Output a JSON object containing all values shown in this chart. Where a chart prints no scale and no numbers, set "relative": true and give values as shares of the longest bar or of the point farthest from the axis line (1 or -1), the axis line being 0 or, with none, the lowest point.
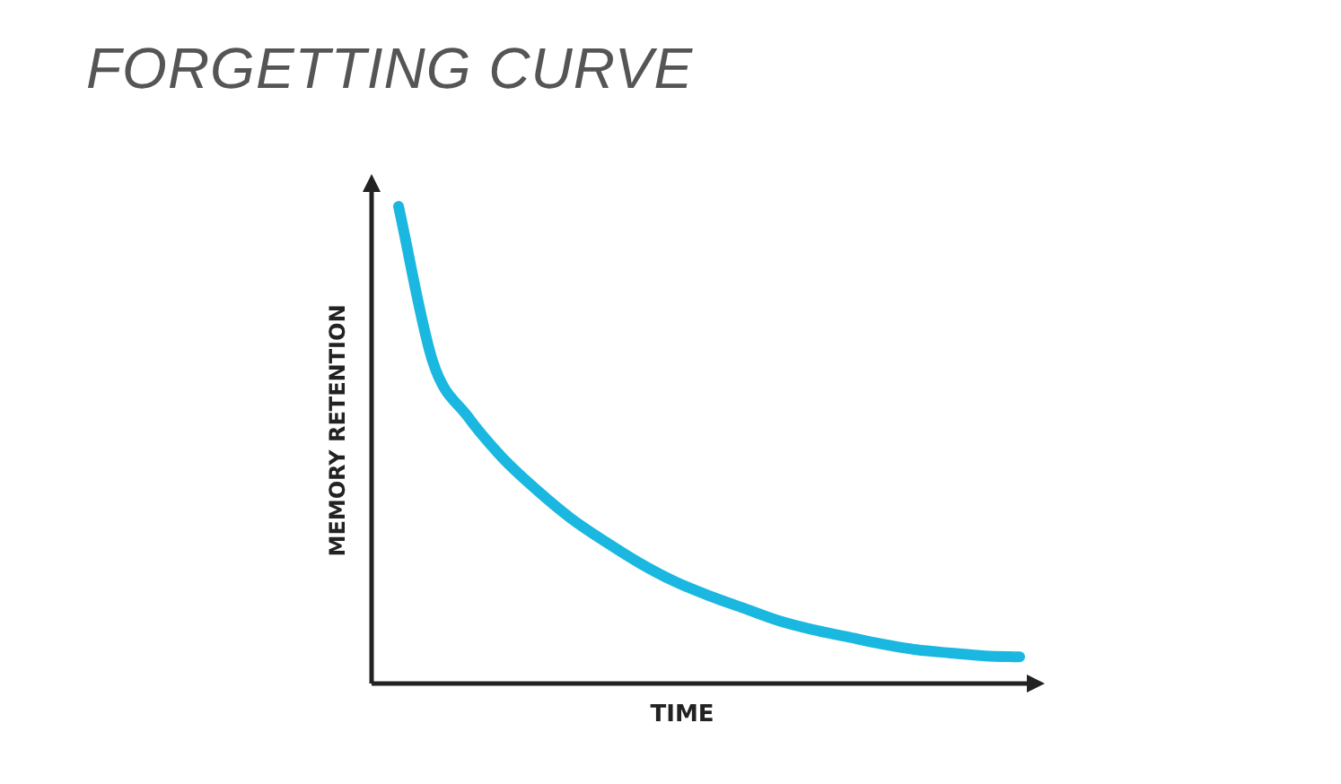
{
  "chart_data": {
    "type": "line",
    "title": "FORGETTING CURVE",
    "xlabel": "TIME",
    "ylabel": "MEMORY RETENTION",
    "relative": true,
    "marker": "none",
    "categories": [
      null,
      null,
      null,
      null,
      null,
      null,
      null,
      null,
      null,
      null,
      null,
      null,
      null,
      null,
      null,
      null,
      null,
      null,
      null
    ],
    "series": [
      {
        "color": "#1ab8e0",
        "values": [
          1.0,
          0.673,
          0.56,
          0.474,
          0.406,
          0.346,
          0.297,
          0.252,
          0.214,
          0.184,
          0.158,
          0.132,
          0.113,
          0.098,
          0.083,
          0.071,
          0.064,
          0.058,
          0.056
        ]
      }
    ]
  }
}
